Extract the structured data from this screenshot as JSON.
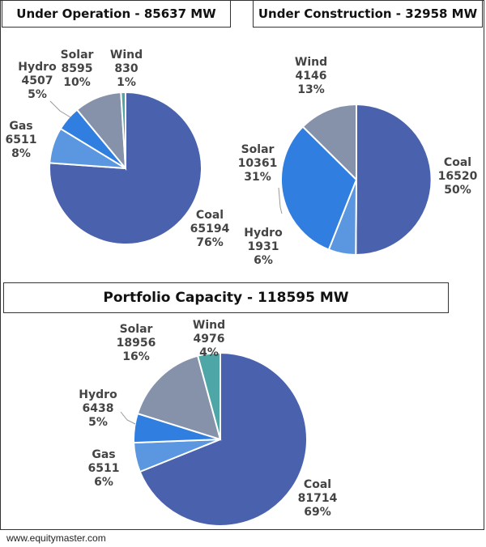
{
  "chart_data": [
    {
      "type": "pie",
      "title": "Under Operation - 85637 MW",
      "slices": [
        {
          "label": "Coal",
          "value": 65194,
          "percent": "76%",
          "color": "#4a62ad"
        },
        {
          "label": "Gas",
          "value": 6511,
          "percent": "8%",
          "color": "#5b97e0"
        },
        {
          "label": "Hydro",
          "value": 4507,
          "percent": "5%",
          "color": "#2f7ee0"
        },
        {
          "label": "Solar",
          "value": 8595,
          "percent": "10%",
          "color": "#8592aa"
        },
        {
          "label": "Wind",
          "value": 830,
          "percent": "1%",
          "color": "#4fa6a6"
        }
      ]
    },
    {
      "type": "pie",
      "title": "Under Construction - 32958 MW",
      "slices": [
        {
          "label": "Coal",
          "value": 16520,
          "percent": "50%",
          "color": "#4a62ad"
        },
        {
          "label": "Hydro",
          "value": 1931,
          "percent": "6%",
          "color": "#5b97e0"
        },
        {
          "label": "Solar",
          "value": 10361,
          "percent": "31%",
          "color": "#2f7ee0"
        },
        {
          "label": "Wind",
          "value": 4146,
          "percent": "13%",
          "color": "#8592aa"
        }
      ]
    },
    {
      "type": "pie",
      "title": "Portfolio Capacity - 118595 MW",
      "slices": [
        {
          "label": "Coal",
          "value": 81714,
          "percent": "69%",
          "color": "#4a62ad"
        },
        {
          "label": "Gas",
          "value": 6511,
          "percent": "6%",
          "color": "#5b97e0"
        },
        {
          "label": "Hydro",
          "value": 6438,
          "percent": "5%",
          "color": "#2f7ee0"
        },
        {
          "label": "Solar",
          "value": 18956,
          "percent": "16%",
          "color": "#8592aa"
        },
        {
          "label": "Wind",
          "value": 4976,
          "percent": "4%",
          "color": "#4fa6a6"
        }
      ]
    }
  ],
  "footer": "www.equitymaster.com"
}
